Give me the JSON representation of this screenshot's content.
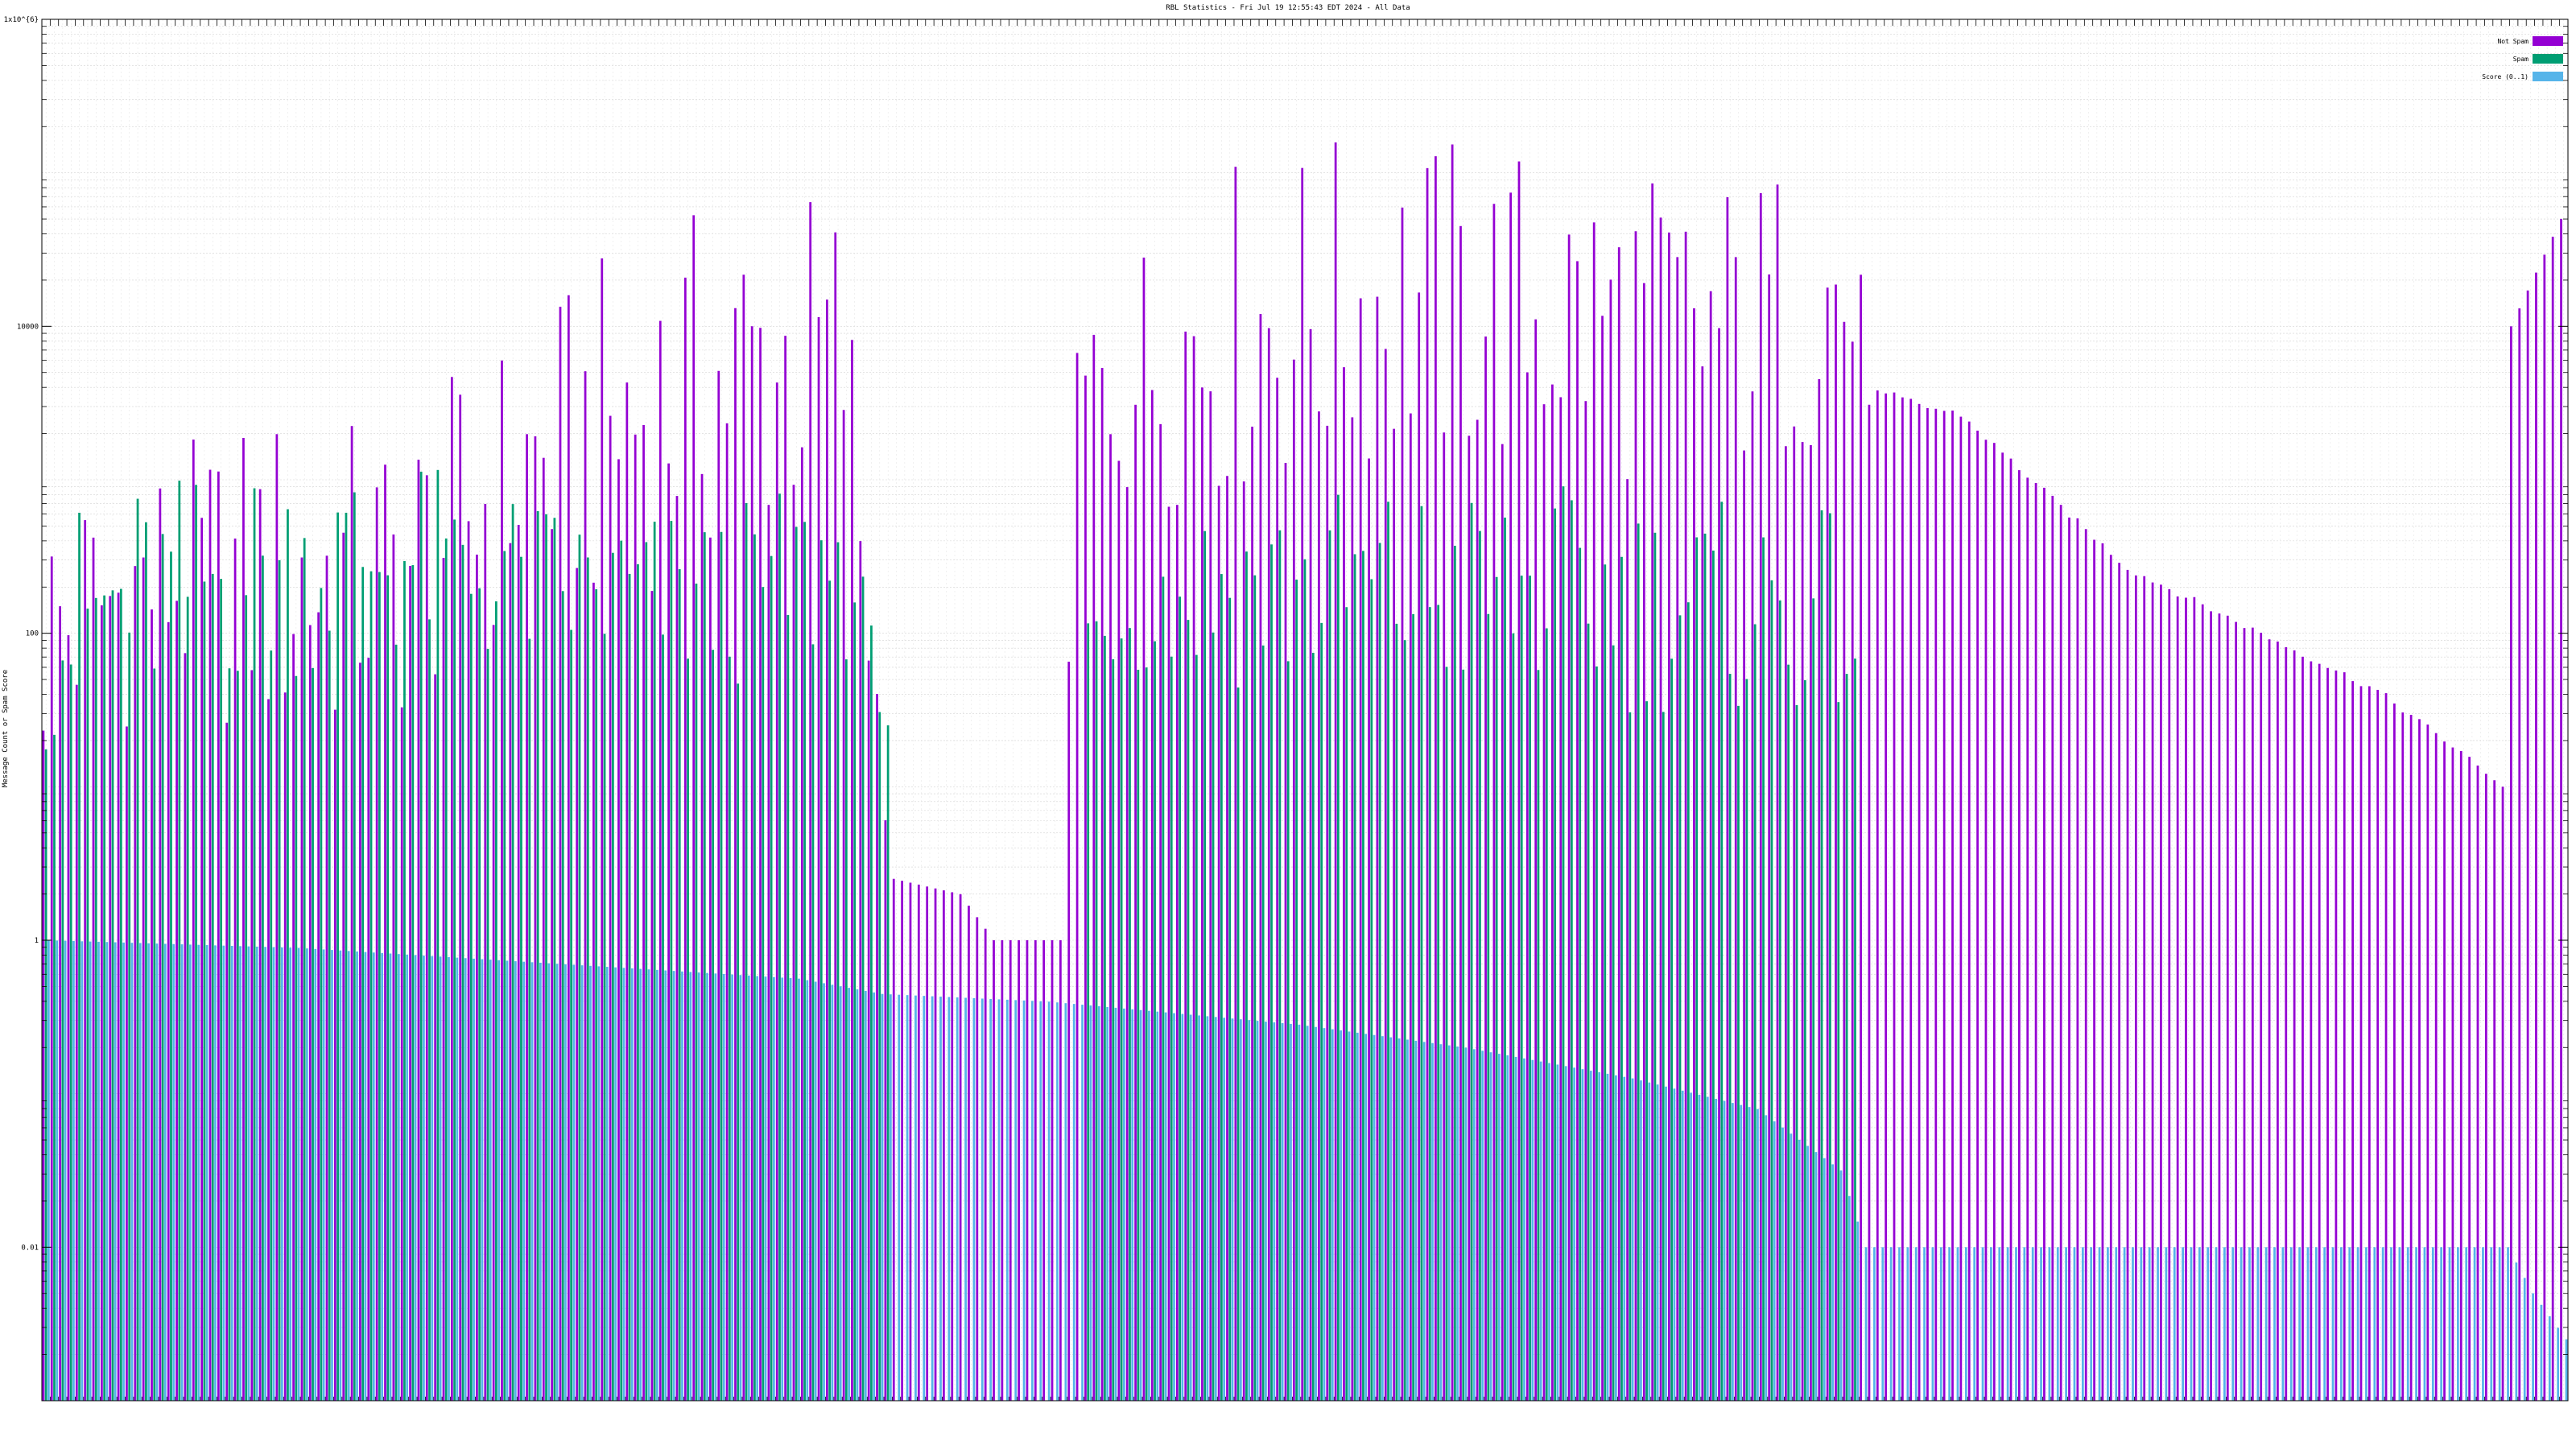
{
  "chart_data": {
    "type": "bar",
    "title": "RBL Statistics - Fri Jul 19 12:55:43 EDT 2024 - All Data",
    "ylabel": "Message Count or Spam Score",
    "yscale": "log",
    "ylim": [
      0.001,
      1000000
    ],
    "y_ticks": [
      {
        "value": 0.01,
        "label": "0.01"
      },
      {
        "value": 1,
        "label": "1"
      },
      {
        "value": 100,
        "label": "100"
      },
      {
        "value": 10000,
        "label": "10000"
      },
      {
        "value": 1000000,
        "label": "1x10^{6}"
      }
    ],
    "grid": true,
    "legend_position": "top-right",
    "series": [
      {
        "name": "Not Spam",
        "color": "#9400d3"
      },
      {
        "name": "Spam",
        "color": "#009e73"
      },
      {
        "name": "Score (0..1)",
        "color": "#56b4e9"
      }
    ],
    "n_categories": 303,
    "not_spam_profile": [
      [
        0,
        1.0,
        3.0
      ],
      [
        14,
        1.5,
        3.2
      ],
      [
        28,
        1.2,
        3.5
      ],
      [
        42,
        1.3,
        3.4
      ],
      [
        56,
        2.0,
        4.0
      ],
      [
        70,
        2.2,
        4.6
      ],
      [
        84,
        2.5,
        4.9
      ],
      [
        96,
        2.6,
        5.0
      ],
      [
        102,
        0.4,
        0.4
      ],
      [
        110,
        0.3,
        0.3
      ],
      [
        114,
        0.0,
        0.0
      ],
      [
        122,
        0.0,
        0.0
      ],
      [
        124,
        2.8,
        4.2
      ],
      [
        140,
        2.8,
        5.1
      ],
      [
        160,
        3.0,
        5.3
      ],
      [
        180,
        3.0,
        5.2
      ],
      [
        200,
        2.9,
        5.0
      ],
      [
        216,
        3.2,
        5.2
      ],
      [
        220,
        3.5,
        3.6
      ],
      [
        230,
        3.4,
        3.45
      ],
      [
        240,
        2.9,
        2.95
      ],
      [
        250,
        2.4,
        2.45
      ],
      [
        265,
        2.0,
        2.05
      ],
      [
        280,
        1.6,
        1.65
      ],
      [
        290,
        1.2,
        1.25
      ],
      [
        295,
        1.0,
        1.0
      ],
      [
        296,
        4.0,
        4.0
      ],
      [
        302,
        4.7,
        4.7
      ]
    ],
    "spam_profile": [
      [
        0,
        1.2,
        2.8
      ],
      [
        10,
        1.4,
        3.0
      ],
      [
        20,
        1.6,
        3.1
      ],
      [
        40,
        1.8,
        3.2
      ],
      [
        60,
        1.7,
        2.9
      ],
      [
        80,
        1.6,
        2.8
      ],
      [
        96,
        1.8,
        3.1
      ],
      [
        101,
        1.4,
        1.4
      ],
      [
        102,
        null,
        null
      ],
      [
        124,
        1.8,
        2.2
      ],
      [
        140,
        1.6,
        3.0
      ],
      [
        180,
        1.5,
        3.0
      ],
      [
        217,
        1.4,
        2.8
      ],
      [
        220,
        null,
        null
      ],
      [
        302,
        null,
        null
      ]
    ],
    "score_profile": [
      [
        0,
        0.0,
        0.0
      ],
      [
        30,
        -0.05,
        -0.05
      ],
      [
        60,
        -0.15,
        -0.15
      ],
      [
        90,
        -0.25,
        -0.25
      ],
      [
        100,
        -0.35,
        -0.35
      ],
      [
        120,
        -0.4,
        -0.4
      ],
      [
        150,
        -0.55,
        -0.55
      ],
      [
        170,
        -0.7,
        -0.7
      ],
      [
        190,
        -0.9,
        -0.9
      ],
      [
        205,
        -1.1,
        -1.1
      ],
      [
        215,
        -1.5,
        -1.5
      ],
      [
        218,
        -2.0,
        -2.0
      ],
      [
        295,
        -2.0,
        -2.0
      ],
      [
        298,
        -2.3,
        -2.3
      ],
      [
        302,
        -2.6,
        -2.6
      ]
    ]
  }
}
